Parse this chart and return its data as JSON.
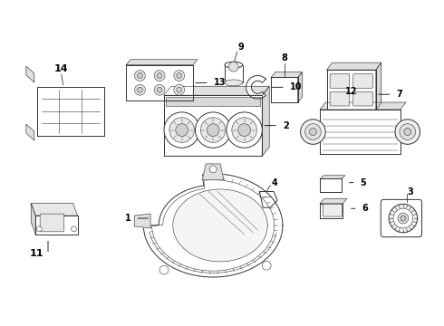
{
  "bg_color": "#ffffff",
  "line_color": "#333333",
  "parts": [
    {
      "id": 1,
      "label": "1"
    },
    {
      "id": 2,
      "label": "2"
    },
    {
      "id": 3,
      "label": "3"
    },
    {
      "id": 4,
      "label": "4"
    },
    {
      "id": 5,
      "label": "5"
    },
    {
      "id": 6,
      "label": "6"
    },
    {
      "id": 7,
      "label": "7"
    },
    {
      "id": 8,
      "label": "8"
    },
    {
      "id": 9,
      "label": "9"
    },
    {
      "id": 10,
      "label": "10"
    },
    {
      "id": 11,
      "label": "11"
    },
    {
      "id": 12,
      "label": "12"
    },
    {
      "id": 13,
      "label": "13"
    },
    {
      "id": 14,
      "label": "14"
    }
  ]
}
